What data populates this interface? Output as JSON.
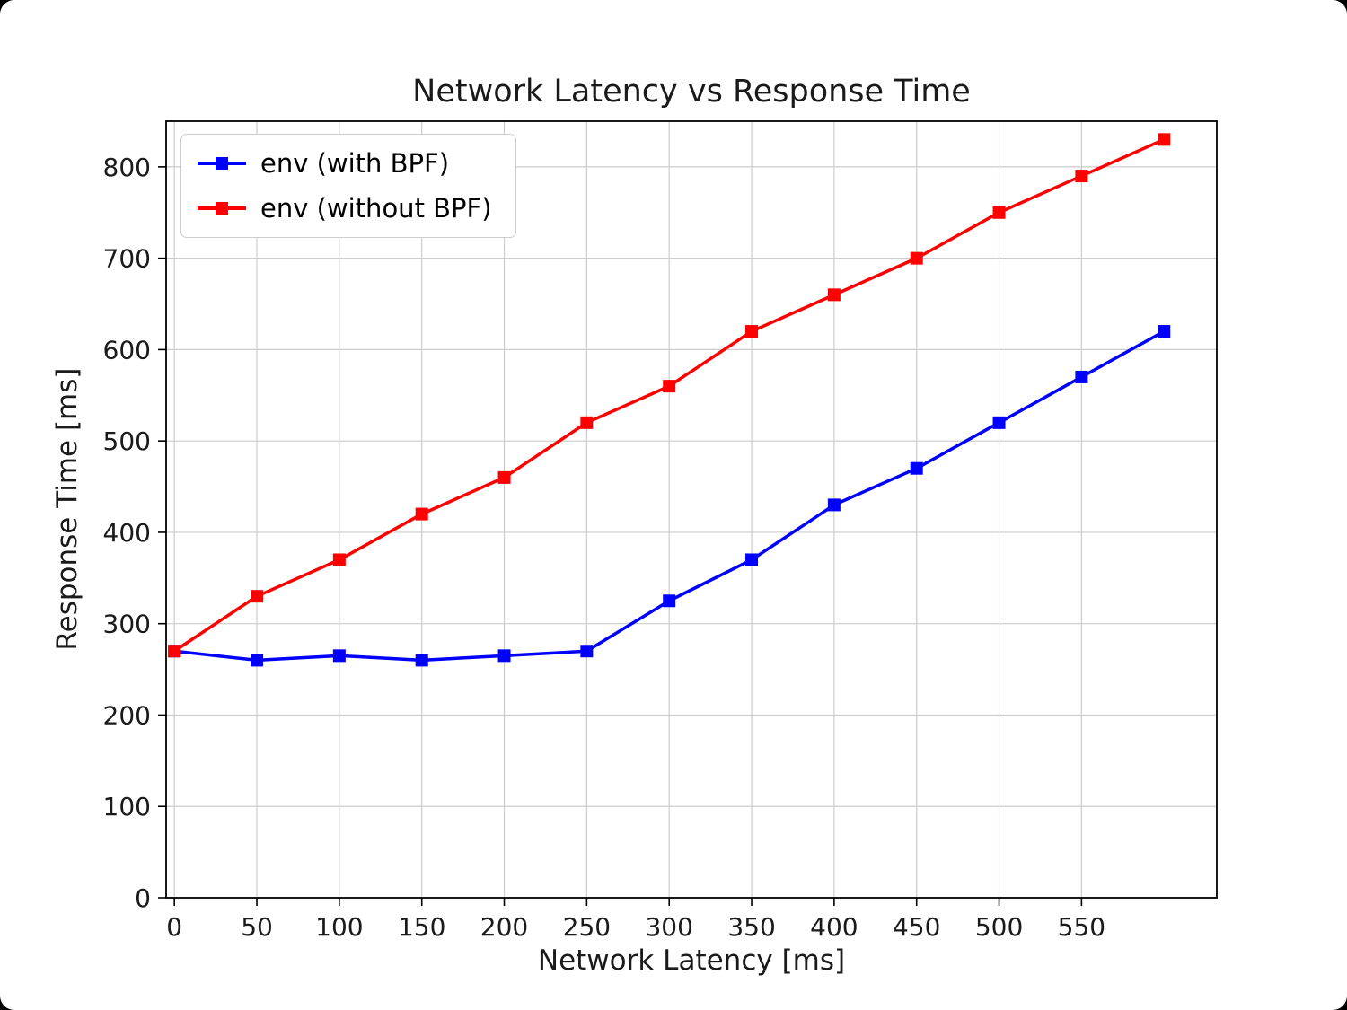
{
  "figure": {
    "title": "Network Latency vs Response Time",
    "xlabel": "Network Latency [ms]",
    "ylabel": "Response Time [ms]"
  },
  "chart_data": {
    "type": "line",
    "title": "Network Latency vs Response Time",
    "xlabel": "Network Latency [ms]",
    "ylabel": "Response Time [ms]",
    "x": [
      0,
      50,
      100,
      150,
      200,
      250,
      300,
      350,
      400,
      450,
      500,
      550,
      600
    ],
    "series": [
      {
        "name": "env (with BPF)",
        "color": "#0000ff",
        "values": [
          270,
          260,
          265,
          260,
          265,
          270,
          325,
          370,
          430,
          470,
          520,
          570,
          620
        ]
      },
      {
        "name": "env (without BPF)",
        "color": "#ff0000",
        "values": [
          270,
          330,
          370,
          420,
          460,
          520,
          560,
          620,
          660,
          700,
          750,
          790,
          830
        ]
      }
    ],
    "x_ticks": [
      0,
      50,
      100,
      150,
      200,
      250,
      300,
      350,
      400,
      450,
      500,
      550
    ],
    "y_ticks": [
      0,
      100,
      200,
      300,
      400,
      500,
      600,
      700,
      800
    ],
    "xlim": [
      -5,
      632
    ],
    "ylim": [
      0,
      850
    ],
    "grid": true,
    "legend_position": "upper left",
    "marker": "square",
    "line_width": 3.5,
    "grid_color": "#cccccc",
    "axis_color": "#000000"
  }
}
